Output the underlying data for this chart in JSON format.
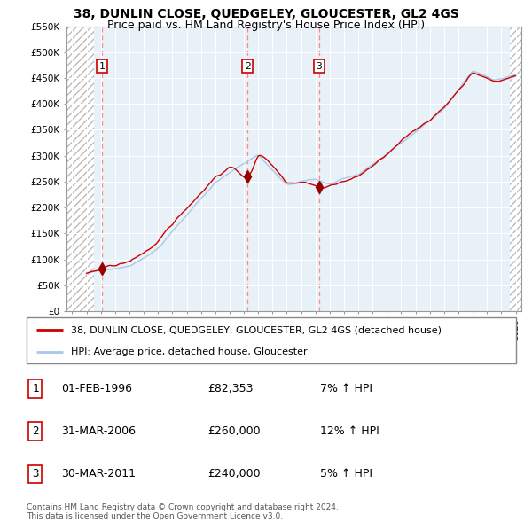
{
  "title": "38, DUNLIN CLOSE, QUEDGELEY, GLOUCESTER, GL2 4GS",
  "subtitle": "Price paid vs. HM Land Registry's House Price Index (HPI)",
  "ylim": [
    0,
    550000
  ],
  "yticks": [
    0,
    50000,
    100000,
    150000,
    200000,
    250000,
    300000,
    350000,
    400000,
    450000,
    500000,
    550000
  ],
  "ytick_labels": [
    "£0",
    "£50K",
    "£100K",
    "£150K",
    "£200K",
    "£250K",
    "£300K",
    "£350K",
    "£400K",
    "£450K",
    "£500K",
    "£550K"
  ],
  "xlim_start": 1993.6,
  "xlim_end": 2025.4,
  "hatch_left_end": 1995.5,
  "hatch_right_start": 2024.6,
  "sale_dates": [
    1996.08,
    2006.25,
    2011.25
  ],
  "sale_prices": [
    82353,
    260000,
    240000
  ],
  "sale_labels": [
    "1",
    "2",
    "3"
  ],
  "hpi_color": "#a8c8e8",
  "price_color": "#cc0000",
  "marker_color": "#990000",
  "vline_color": "#ff8888",
  "plot_bg_color": "#e8f0f8",
  "hatch_color": "#cccccc",
  "legend_line1": "38, DUNLIN CLOSE, QUEDGELEY, GLOUCESTER, GL2 4GS (detached house)",
  "legend_line2": "HPI: Average price, detached house, Gloucester",
  "table_entries": [
    {
      "label": "1",
      "date": "01-FEB-1996",
      "price": "£82,353",
      "hpi": "7% ↑ HPI"
    },
    {
      "label": "2",
      "date": "31-MAR-2006",
      "price": "£260,000",
      "hpi": "12% ↑ HPI"
    },
    {
      "label": "3",
      "date": "30-MAR-2011",
      "price": "£240,000",
      "hpi": "5% ↑ HPI"
    }
  ],
  "footnote": "Contains HM Land Registry data © Crown copyright and database right 2024.\nThis data is licensed under the Open Government Licence v3.0.",
  "title_fontsize": 10,
  "subtitle_fontsize": 9,
  "tick_fontsize": 7.5,
  "legend_fontsize": 8,
  "table_fontsize": 9
}
